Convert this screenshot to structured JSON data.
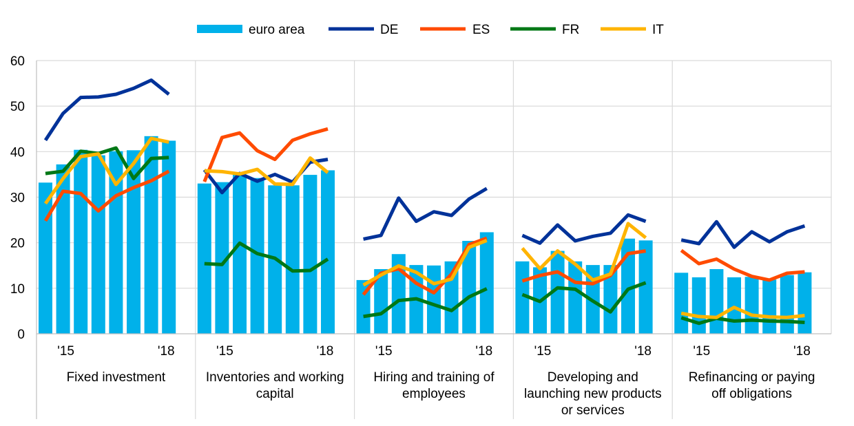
{
  "chart_data": {
    "type": "bar",
    "title": "",
    "xlabel": "",
    "ylabel": "",
    "ylim": [
      0,
      60
    ],
    "yticks": [
      0,
      10,
      20,
      30,
      40,
      50,
      60
    ],
    "grid": true,
    "legend_position": "top-center",
    "x_tick_labels": [
      "'15",
      "'18"
    ],
    "legend": [
      {
        "name": "euro area",
        "kind": "bar",
        "color": "#00B1EA"
      },
      {
        "name": "DE",
        "kind": "line",
        "color": "#003299"
      },
      {
        "name": "ES",
        "kind": "line",
        "color": "#FF4B00"
      },
      {
        "name": "FR",
        "kind": "line",
        "color": "#007816"
      },
      {
        "name": "IT",
        "kind": "line",
        "color": "#FFB400"
      }
    ],
    "panels": [
      {
        "label_lines": [
          "Fixed investment"
        ],
        "bars": [
          33.2,
          37.2,
          40.4,
          39.2,
          40.1,
          40.3,
          43.4,
          42.4
        ],
        "series": {
          "DE": [
            42.5,
            48.4,
            51.9,
            52.0,
            52.6,
            53.9,
            55.7,
            52.6
          ],
          "ES": [
            24.8,
            31.3,
            30.8,
            27.0,
            30.3,
            32.1,
            33.6,
            35.7
          ],
          "FR": [
            35.2,
            35.7,
            40.1,
            39.6,
            40.8,
            34.1,
            38.5,
            38.7
          ],
          "IT": [
            28.6,
            34.1,
            38.9,
            39.5,
            32.8,
            37.4,
            42.9,
            42.1
          ]
        }
      },
      {
        "label_lines": [
          "Inventories and working",
          "capital"
        ],
        "bars": [
          33.0,
          33.3,
          35.0,
          34.2,
          32.6,
          32.6,
          34.9,
          35.9
        ],
        "series": {
          "DE": [
            36.0,
            31.0,
            35.2,
            33.5,
            35.0,
            33.3,
            37.7,
            38.3
          ],
          "ES": [
            33.4,
            43.1,
            44.1,
            40.2,
            38.3,
            42.5,
            43.9,
            45.0
          ],
          "FR": [
            15.4,
            15.2,
            19.9,
            17.6,
            16.6,
            13.8,
            13.9,
            16.4
          ],
          "IT": [
            35.8,
            35.6,
            35.1,
            36.1,
            32.9,
            32.8,
            38.6,
            35.4
          ]
        }
      },
      {
        "label_lines": [
          "Hiring and training of",
          "employees"
        ],
        "bars": [
          11.8,
          14.2,
          17.5,
          15.1,
          15.0,
          15.9,
          20.4,
          22.3
        ],
        "series": {
          "DE": [
            20.8,
            21.6,
            29.8,
            24.7,
            26.8,
            26.0,
            29.6,
            31.9
          ],
          "ES": [
            8.6,
            13.3,
            14.3,
            11.1,
            9.0,
            13.1,
            19.6,
            21.0
          ],
          "FR": [
            3.8,
            4.4,
            7.3,
            7.7,
            6.4,
            5.1,
            8.1,
            9.9
          ],
          "IT": [
            10.7,
            12.9,
            14.9,
            13.5,
            11.0,
            12.0,
            19.0,
            20.5
          ]
        }
      },
      {
        "label_lines": [
          "Developing and",
          "launching new products",
          "or services"
        ],
        "bars": [
          15.9,
          14.6,
          18.2,
          15.9,
          15.1,
          15.1,
          20.9,
          20.5
        ],
        "series": {
          "DE": [
            21.6,
            19.9,
            23.9,
            20.4,
            21.4,
            22.1,
            26.1,
            24.7
          ],
          "ES": [
            11.6,
            12.8,
            13.6,
            11.3,
            11.0,
            12.8,
            17.6,
            18.2
          ],
          "FR": [
            8.6,
            7.1,
            10.1,
            9.8,
            7.2,
            4.8,
            9.8,
            11.2
          ],
          "IT": [
            18.8,
            14.3,
            18.2,
            15.3,
            11.8,
            13.1,
            24.2,
            21.1
          ]
        }
      },
      {
        "label_lines": [
          "Refinancing or paying",
          "off obligations"
        ],
        "bars": [
          13.4,
          12.4,
          14.2,
          12.4,
          12.5,
          11.9,
          12.9,
          13.5
        ],
        "series": {
          "DE": [
            20.6,
            19.8,
            24.6,
            19.0,
            22.4,
            20.2,
            22.4,
            23.7
          ],
          "ES": [
            18.3,
            15.4,
            16.4,
            14.2,
            12.6,
            11.8,
            13.3,
            13.6
          ],
          "FR": [
            3.5,
            2.3,
            3.4,
            2.8,
            3.0,
            2.8,
            2.7,
            2.5
          ],
          "IT": [
            4.5,
            3.8,
            3.6,
            5.8,
            4.1,
            3.7,
            3.6,
            4.0
          ]
        }
      }
    ]
  }
}
